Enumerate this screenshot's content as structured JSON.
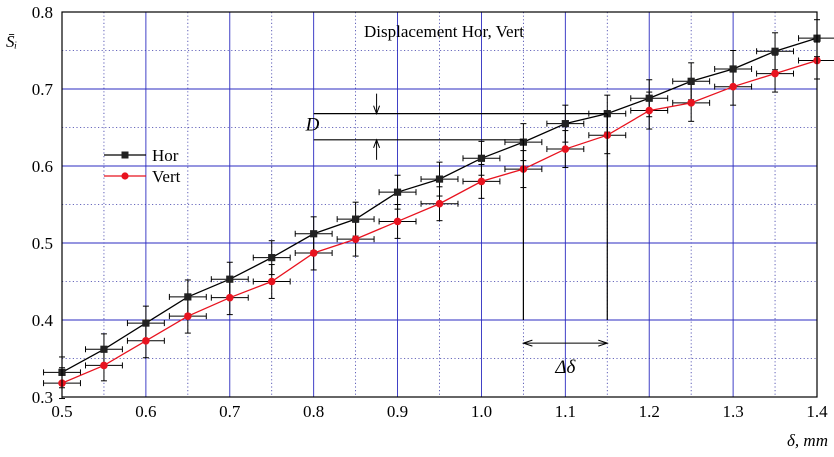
{
  "chart_data": {
    "type": "line",
    "title": "Displacement Hor, Vert",
    "xlabel": "δ, mm",
    "ylabel": "S̄ᵢ",
    "xlim": [
      0.5,
      1.4
    ],
    "ylim": [
      0.3,
      0.8
    ],
    "x_ticks": [
      "0.5",
      "0.6",
      "0.7",
      "0.8",
      "0.9",
      "1.0",
      "1.1",
      "1.2",
      "1.3",
      "1.4"
    ],
    "y_ticks": [
      "0.3",
      "0.4",
      "0.5",
      "0.6",
      "0.7",
      "0.8"
    ],
    "x_tick_values": [
      0.5,
      0.6,
      0.7,
      0.8,
      0.9,
      1.0,
      1.1,
      1.2,
      1.3,
      1.4
    ],
    "y_tick_values": [
      0.3,
      0.4,
      0.5,
      0.6,
      0.7,
      0.8
    ],
    "grid": "major solid blue, minor dotted",
    "legend_position": "left",
    "x": [
      0.5,
      0.55,
      0.6,
      0.65,
      0.7,
      0.75,
      0.8,
      0.85,
      0.9,
      0.95,
      1.0,
      1.05,
      1.1,
      1.15,
      1.2,
      1.25,
      1.3,
      1.35,
      1.4
    ],
    "series": [
      {
        "name": "Hor",
        "color": "#000000",
        "marker": "square",
        "values": [
          0.332,
          0.362,
          0.396,
          0.43,
          0.453,
          0.481,
          0.512,
          0.531,
          0.566,
          0.583,
          0.61,
          0.631,
          0.655,
          0.668,
          0.688,
          0.71,
          0.726,
          0.749,
          0.766
        ],
        "y_err": [
          0.02,
          0.02,
          0.022,
          0.022,
          0.022,
          0.022,
          0.022,
          0.022,
          0.022,
          0.022,
          0.022,
          0.024,
          0.024,
          0.024,
          0.024,
          0.024,
          0.024,
          0.024,
          0.024
        ]
      },
      {
        "name": "Vert",
        "color": "#e8131f",
        "marker": "circle",
        "values": [
          0.318,
          0.341,
          0.373,
          0.405,
          0.429,
          0.45,
          0.487,
          0.505,
          0.528,
          0.551,
          0.58,
          0.596,
          0.622,
          0.64,
          0.672,
          0.682,
          0.703,
          0.72,
          0.737
        ],
        "y_err": [
          0.02,
          0.02,
          0.022,
          0.022,
          0.022,
          0.022,
          0.022,
          0.022,
          0.022,
          0.022,
          0.022,
          0.024,
          0.024,
          0.024,
          0.024,
          0.024,
          0.024,
          0.024,
          0.024
        ]
      }
    ],
    "x_err": 0.022,
    "annotations": {
      "D_label": "D",
      "delta_label": "Δδ",
      "D_upper_y": 0.668,
      "D_lower_y": 0.634,
      "D_line_x_start": 0.8,
      "D_arrow_x": 0.875,
      "delta_x_start": 1.05,
      "delta_x_end": 1.15,
      "delta_arrow_y": 0.37,
      "vline_bottom_y": 0.4
    }
  }
}
